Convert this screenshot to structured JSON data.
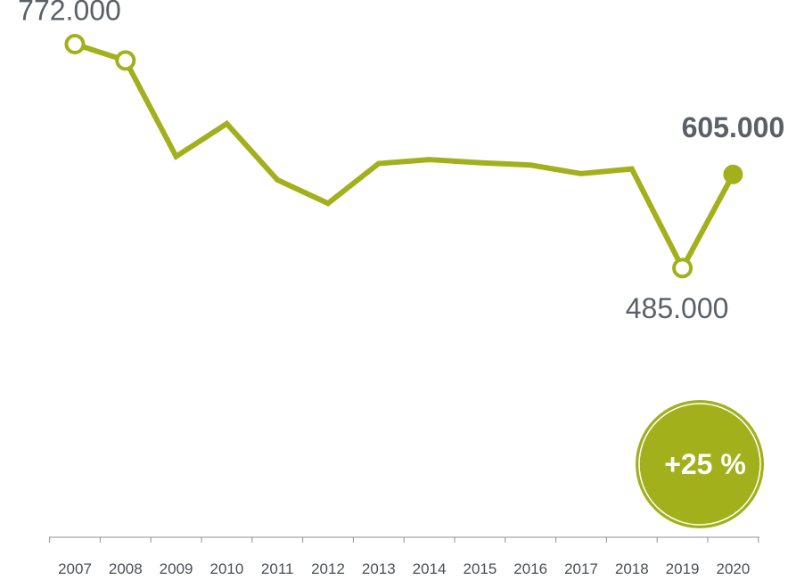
{
  "chart_data": {
    "type": "line",
    "x": [
      "2007",
      "2008",
      "2009",
      "2010",
      "2011",
      "2012",
      "2013",
      "2014",
      "2015",
      "2016",
      "2017",
      "2018",
      "2019",
      "2020"
    ],
    "series": [
      {
        "values": [
          772000,
          751000,
          628000,
          670000,
          598000,
          568000,
          619000,
          624000,
          620000,
          617000,
          606000,
          612000,
          485000,
          605000
        ]
      }
    ],
    "ylim": [
      140000,
      800000
    ],
    "grid": false,
    "legend": "none",
    "color": "#a2b01c",
    "annotations": [
      {
        "text": "772.000",
        "index": 0,
        "bold": false
      },
      {
        "text": "485.000",
        "index": 12,
        "bold": false
      },
      {
        "text": "605.000",
        "index": 13,
        "bold": true
      }
    ],
    "markers": {
      "hollow": [
        0,
        1,
        12
      ],
      "filled": [
        13
      ]
    },
    "badge": {
      "text": "+25 %",
      "color": "#a2b01c"
    }
  }
}
